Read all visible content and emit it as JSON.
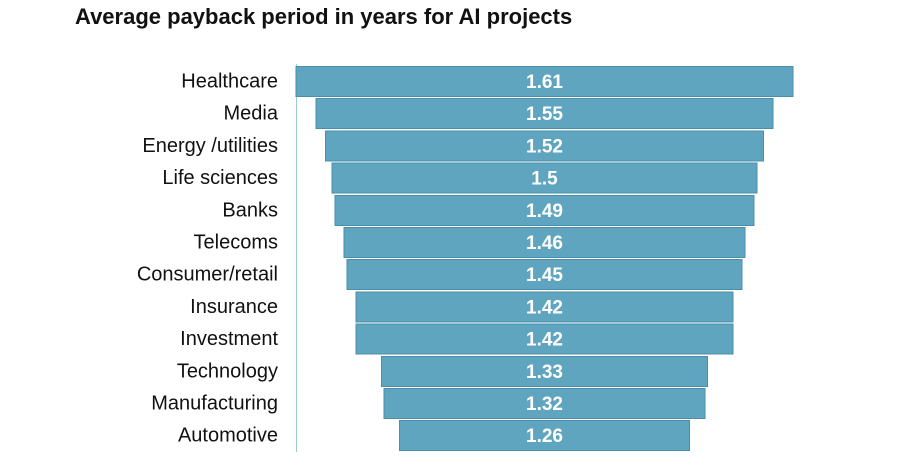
{
  "chart_data": {
    "type": "bar",
    "orientation": "horizontal",
    "title": "Average payback period in years for AI projects",
    "categories": [
      "Healthcare",
      "Media",
      "Energy /utilities",
      "Life sciences",
      "Banks",
      "Telecoms",
      "Consumer/retail",
      "Insurance",
      "Investment",
      "Technology",
      "Manufacturing",
      "Automotive"
    ],
    "values": [
      1.61,
      1.55,
      1.52,
      1.5,
      1.49,
      1.46,
      1.45,
      1.42,
      1.42,
      1.33,
      1.32,
      1.26
    ],
    "value_labels": [
      "1.61",
      "1.55",
      "1.52",
      "1.5",
      "1.49",
      "1.46",
      "1.45",
      "1.42",
      "1.42",
      "1.33",
      "1.32",
      "1.26"
    ],
    "xlabel": "",
    "ylabel": "",
    "xlim": [
      0,
      1.61
    ],
    "grid": false,
    "legend": "none",
    "bar_color": "#5fa5bf",
    "bar_edge_color": "#4a8fa8"
  }
}
